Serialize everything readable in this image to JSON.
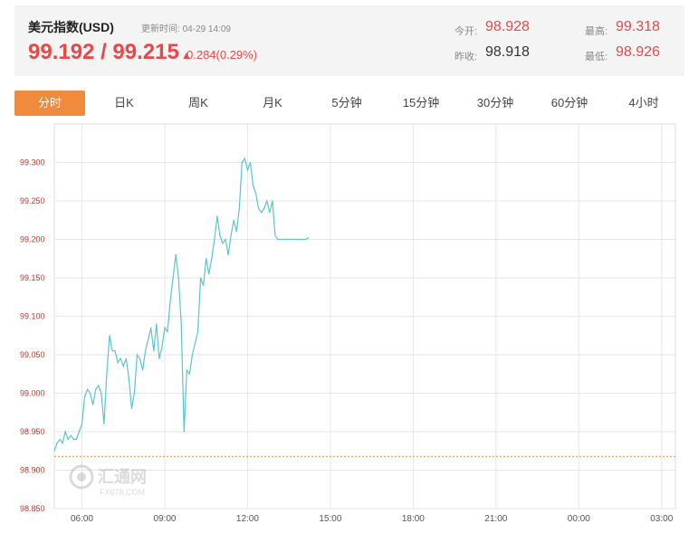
{
  "header": {
    "title": "美元指数(USD)",
    "update_label": "更新时间:",
    "update_time": "04-29 14:09",
    "price": "99.192 / 99.215",
    "change": "0.284(0.29%)",
    "open_label": "今开:",
    "open": "98.928",
    "prev_close_label": "昨收:",
    "prev_close": "98.918",
    "high_label": "最高:",
    "high": "99.318",
    "low_label": "最低:",
    "low": "98.926"
  },
  "tabs": [
    {
      "label": "分时",
      "active": true
    },
    {
      "label": "日K",
      "active": false
    },
    {
      "label": "周K",
      "active": false
    },
    {
      "label": "月K",
      "active": false
    },
    {
      "label": "5分钟",
      "active": false
    },
    {
      "label": "15分钟",
      "active": false
    },
    {
      "label": "30分钟",
      "active": false
    },
    {
      "label": "60分钟",
      "active": false
    },
    {
      "label": "4小时",
      "active": false
    }
  ],
  "colors": {
    "accent": "#f08a3c",
    "up": "#e84848",
    "line": "#5bc4cf",
    "reference": "#f08a3c",
    "ylabel": "#c0392b"
  },
  "watermark": {
    "text": "汇通网",
    "sub": "FX678.COM"
  },
  "chart_data": {
    "type": "line",
    "title": "",
    "xlabel": "",
    "ylabel": "",
    "ylim": [
      98.85,
      99.35
    ],
    "xlim": [
      5.0,
      27.5
    ],
    "y_ticks": [
      "98.850",
      "98.900",
      "98.950",
      "99.000",
      "99.050",
      "99.100",
      "99.150",
      "99.200",
      "99.250",
      "99.300"
    ],
    "x_ticks": [
      {
        "value": 6,
        "label": "06:00"
      },
      {
        "value": 9,
        "label": "09:00"
      },
      {
        "value": 12,
        "label": "12:00"
      },
      {
        "value": 15,
        "label": "15:00"
      },
      {
        "value": 18,
        "label": "18:00"
      },
      {
        "value": 21,
        "label": "21:00"
      },
      {
        "value": 24,
        "label": "00:00"
      },
      {
        "value": 27,
        "label": "03:00"
      }
    ],
    "reference_line": 98.918,
    "grid": true,
    "series": [
      {
        "x": [
          5.0,
          5.1,
          5.2,
          5.3,
          5.4,
          5.5,
          5.6,
          5.7,
          5.8,
          5.9,
          6.0,
          6.1,
          6.2,
          6.3,
          6.4,
          6.5,
          6.6,
          6.7,
          6.8,
          6.9,
          7.0,
          7.1,
          7.2,
          7.3,
          7.4,
          7.5,
          7.6,
          7.7,
          7.8,
          7.9,
          8.0,
          8.1,
          8.2,
          8.3,
          8.4,
          8.5,
          8.6,
          8.7,
          8.8,
          8.9,
          9.0,
          9.1,
          9.2,
          9.3,
          9.4,
          9.5,
          9.6,
          9.7,
          9.8,
          9.9,
          10.0,
          10.1,
          10.2,
          10.3,
          10.4,
          10.5,
          10.6,
          10.7,
          10.8,
          10.9,
          11.0,
          11.1,
          11.2,
          11.3,
          11.4,
          11.5,
          11.6,
          11.7,
          11.8,
          11.9,
          12.0,
          12.1,
          12.2,
          12.3,
          12.4,
          12.5,
          12.6,
          12.7,
          12.8,
          12.9,
          13.0,
          13.1,
          13.2,
          13.3,
          13.4,
          13.5,
          13.6,
          13.7,
          13.8,
          13.9,
          14.0,
          14.1,
          14.2
        ],
        "y": [
          98.925,
          98.935,
          98.94,
          98.935,
          98.95,
          98.94,
          98.945,
          98.94,
          98.94,
          98.95,
          98.96,
          98.995,
          99.005,
          99.0,
          98.985,
          99.005,
          99.01,
          99.0,
          98.96,
          99.025,
          99.075,
          99.055,
          99.055,
          99.04,
          99.045,
          99.035,
          99.045,
          99.02,
          98.98,
          99.0,
          99.05,
          99.045,
          99.03,
          99.055,
          99.07,
          99.085,
          99.055,
          99.09,
          99.045,
          99.06,
          99.085,
          99.08,
          99.12,
          99.15,
          99.18,
          99.15,
          99.09,
          98.95,
          99.03,
          99.025,
          99.05,
          99.065,
          99.08,
          99.15,
          99.14,
          99.175,
          99.155,
          99.175,
          99.2,
          99.23,
          99.205,
          99.195,
          99.2,
          99.18,
          99.205,
          99.225,
          99.21,
          99.24,
          99.3,
          99.305,
          99.29,
          99.3,
          99.27,
          99.26,
          99.24,
          99.235,
          99.24,
          99.25,
          99.235,
          99.25,
          99.205,
          99.2,
          99.2,
          99.2,
          99.2,
          99.2,
          99.2,
          99.2,
          99.2,
          99.2,
          99.2,
          99.2,
          99.202
        ]
      }
    ]
  }
}
